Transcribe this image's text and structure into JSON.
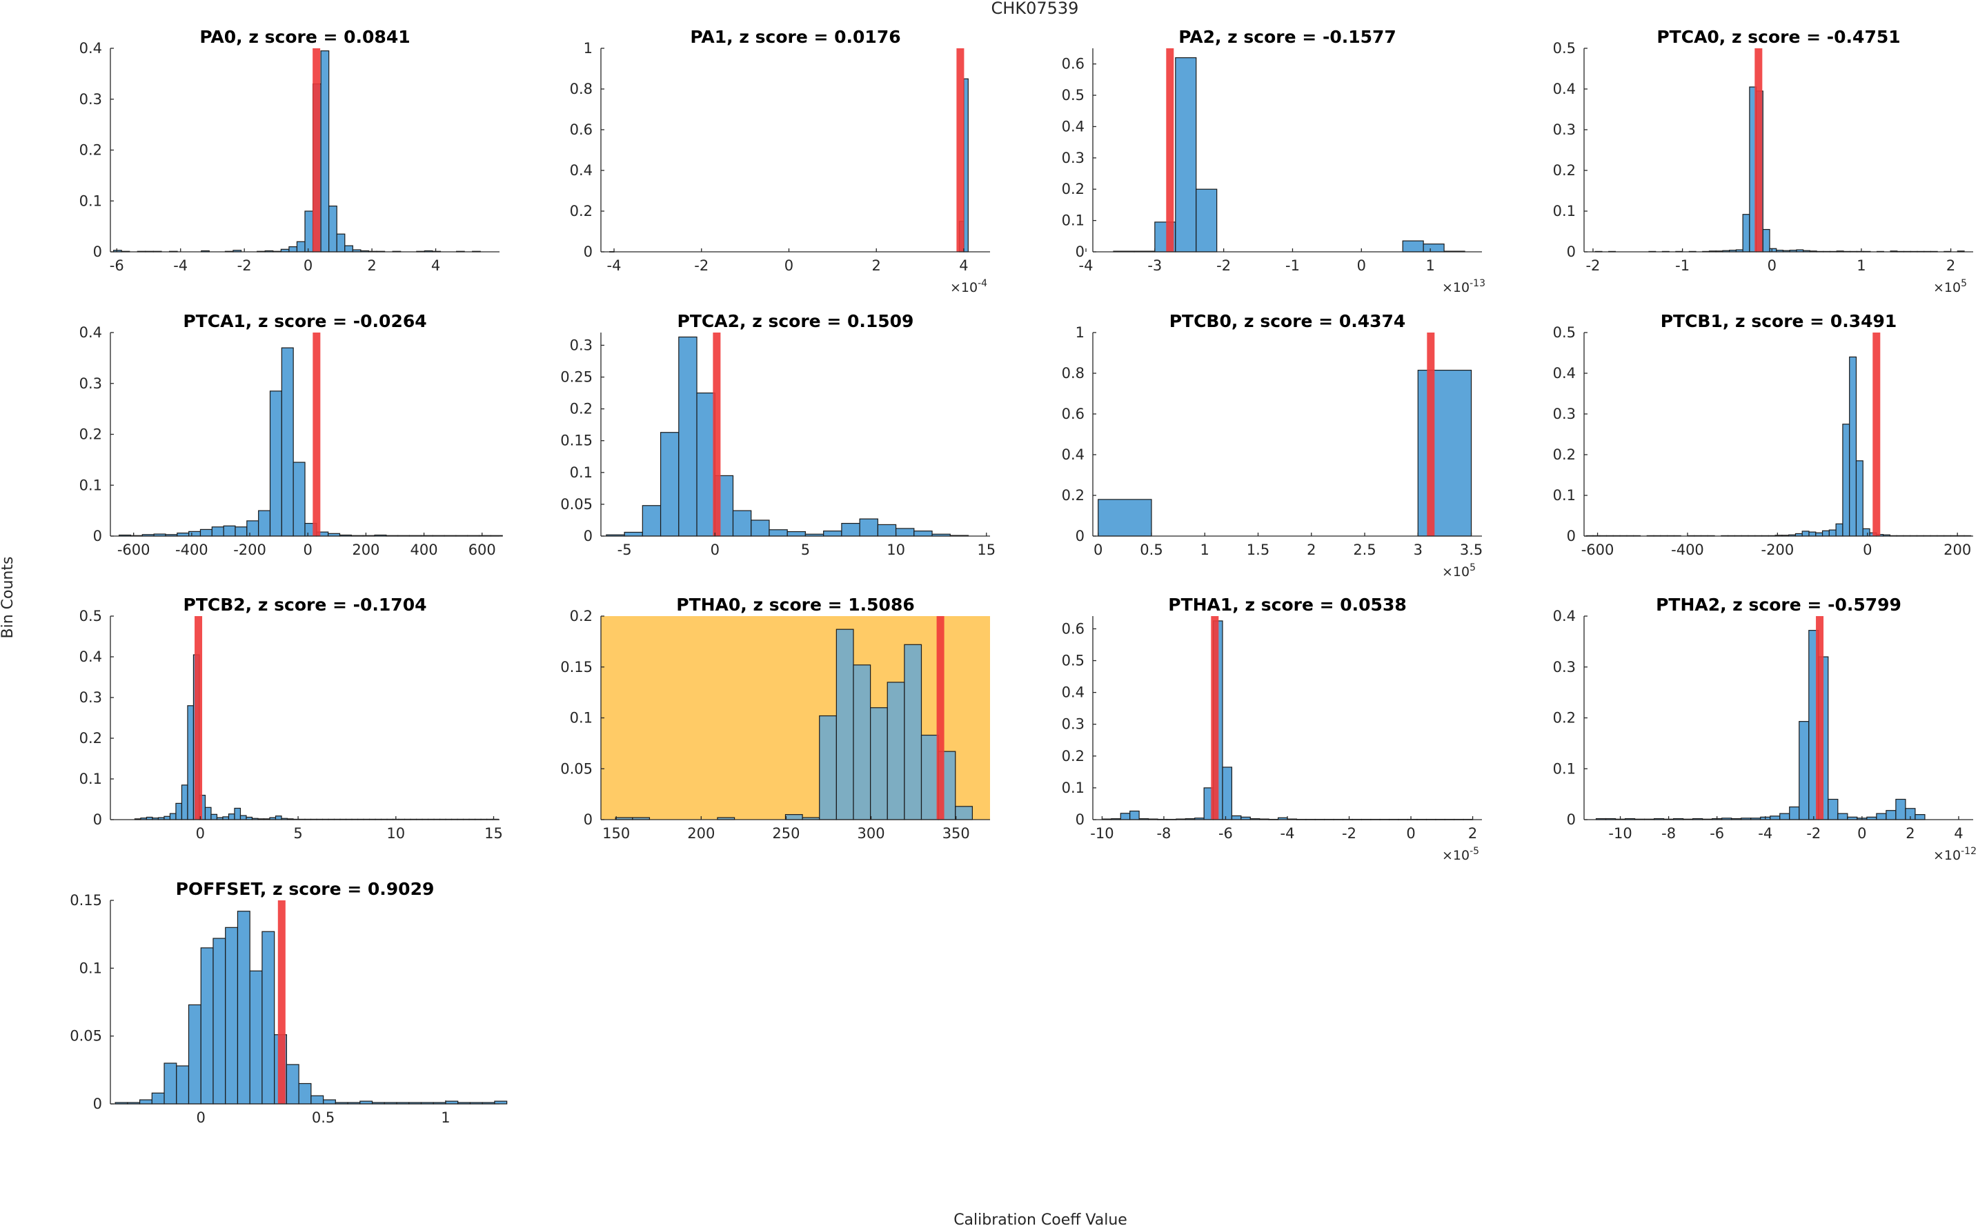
{
  "figure": {
    "title": "CHK07539",
    "xlabel": "Calibration Coeff Value",
    "ylabel": "Bin Counts"
  },
  "colors": {
    "bar_fill": "#5DA5D9",
    "marker": "#F03A3A",
    "highlight_bg": "#FFCB66",
    "axis": "#262626"
  },
  "chart_data": [
    {
      "type": "bar",
      "title": "PA0, z score = 0.0841",
      "xlabel": "",
      "ylabel": "",
      "xlim": [
        -6.2,
        6.0
      ],
      "ylim": [
        0,
        0.4
      ],
      "exponent": null,
      "xticks": [
        -6,
        -4,
        -2,
        0,
        2,
        4
      ],
      "xtick_labels": [
        "-6",
        "-4",
        "-2",
        "0",
        "2",
        "4"
      ],
      "yticks": [
        0,
        0.1,
        0.2,
        0.3,
        0.4
      ],
      "ytick_labels": [
        "0",
        "0.1",
        "0.2",
        "0.3",
        "0.4"
      ],
      "bin_start": -6.1,
      "bin_width": 0.25,
      "values": [
        0.003,
        0.001,
        0,
        0.001,
        0.001,
        0.001,
        0,
        0.001,
        0,
        0,
        0,
        0.002,
        0,
        0,
        0.001,
        0.003,
        0,
        0,
        0.001,
        0.002,
        0.001,
        0.005,
        0.01,
        0.02,
        0.08,
        0.33,
        0.395,
        0.09,
        0.035,
        0.012,
        0.004,
        0.002,
        0.001,
        0.001,
        0,
        0.001,
        0,
        0,
        0.001,
        0.002,
        0.001,
        0,
        0,
        0.001,
        0,
        0.001
      ],
      "marker": 0.26,
      "highlight": false
    },
    {
      "type": "bar",
      "title": "PA1, z score = 0.0176",
      "xlabel": "",
      "ylabel": "",
      "xlim": [
        -4.3,
        4.6
      ],
      "ylim": [
        0,
        1.0
      ],
      "exponent": "-4",
      "xticks": [
        -4,
        -2,
        0,
        2,
        4
      ],
      "xtick_labels": [
        "-4",
        "-2",
        "0",
        "2",
        "4"
      ],
      "yticks": [
        0,
        0.2,
        0.4,
        0.6,
        0.8,
        1.0
      ],
      "ytick_labels": [
        "0",
        "0.2",
        "0.4",
        "0.6",
        "0.8",
        "1"
      ],
      "bin_start": -4.1,
      "bin_width": 0.1,
      "values": [
        0.001,
        0,
        0,
        0,
        0,
        0,
        0,
        0,
        0,
        0,
        0,
        0,
        0,
        0,
        0,
        0,
        0,
        0,
        0,
        0,
        0,
        0,
        0,
        0,
        0,
        0,
        0,
        0,
        0,
        0,
        0,
        0,
        0,
        0,
        0,
        0,
        0,
        0,
        0,
        0,
        0,
        0,
        0,
        0,
        0,
        0,
        0,
        0,
        0,
        0,
        0,
        0,
        0,
        0,
        0,
        0,
        0,
        0,
        0,
        0,
        0,
        0,
        0,
        0,
        0,
        0,
        0,
        0,
        0,
        0,
        0,
        0,
        0,
        0,
        0,
        0,
        0,
        0,
        0,
        0,
        0.15,
        0.85
      ],
      "marker": 3.92,
      "highlight": false
    },
    {
      "type": "bar",
      "title": "PA2, z score = -0.1577",
      "xlabel": "",
      "ylabel": "",
      "xlim": [
        -3.9,
        1.75
      ],
      "ylim": [
        0,
        0.65
      ],
      "exponent": "-13",
      "xticks": [
        -4,
        -3,
        -2,
        -1,
        0,
        1
      ],
      "xtick_labels": [
        "-4",
        "-3",
        "-2",
        "-1",
        "0",
        "1"
      ],
      "yticks": [
        0,
        0.1,
        0.2,
        0.3,
        0.4,
        0.5,
        0.6
      ],
      "ytick_labels": [
        "0",
        "0.1",
        "0.2",
        "0.3",
        "0.4",
        "0.5",
        "0.6"
      ],
      "bin_start": -3.6,
      "bin_width": 0.3,
      "values": [
        0.002,
        0.002,
        0.095,
        0.62,
        0.2,
        0,
        0,
        0,
        0,
        0,
        0,
        0,
        0,
        0,
        0.035,
        0.025,
        0.002
      ],
      "marker": -2.78,
      "highlight": false
    },
    {
      "type": "bar",
      "title": "PTCA0, z score = -0.4751",
      "xlabel": "",
      "ylabel": "",
      "xlim": [
        -2.1,
        2.25
      ],
      "ylim": [
        0,
        0.5
      ],
      "exponent": "5",
      "xticks": [
        -2,
        -1,
        0,
        1,
        2
      ],
      "xtick_labels": [
        "-2",
        "-1",
        "0",
        "1",
        "2"
      ],
      "yticks": [
        0,
        0.1,
        0.2,
        0.3,
        0.4,
        0.5
      ],
      "ytick_labels": [
        "0",
        "0.1",
        "0.2",
        "0.3",
        "0.4",
        "0.5"
      ],
      "bin_start": -1.975,
      "bin_width": 0.075,
      "values": [
        0.001,
        0,
        0.001,
        0,
        0,
        0,
        0,
        0,
        0.001,
        0,
        0.001,
        0,
        0.001,
        0,
        0.001,
        0,
        0.001,
        0.002,
        0.002,
        0.003,
        0.004,
        0.005,
        0.092,
        0.405,
        0.395,
        0.055,
        0.008,
        0.004,
        0.003,
        0.004,
        0.005,
        0.003,
        0.002,
        0.001,
        0.001,
        0.001,
        0.002,
        0.001,
        0.001,
        0.001,
        0.001,
        0,
        0.001,
        0,
        0.002,
        0.001,
        0.001,
        0.001,
        0.001,
        0.001,
        0.001,
        0,
        0.001,
        0,
        0.002
      ],
      "marker": -0.15,
      "highlight": false
    },
    {
      "type": "bar",
      "title": "PTCA1, z score = -0.0264",
      "xlabel": "",
      "ylabel": "",
      "xlim": [
        -680,
        660
      ],
      "ylim": [
        0,
        0.4
      ],
      "exponent": null,
      "xticks": [
        -600,
        -400,
        -200,
        0,
        200,
        400,
        600
      ],
      "xtick_labels": [
        "-600",
        "-400",
        "-200",
        "0",
        "200",
        "400",
        "600"
      ],
      "yticks": [
        0,
        0.1,
        0.2,
        0.3,
        0.4
      ],
      "ytick_labels": [
        "0",
        "0.1",
        "0.2",
        "0.3",
        "0.4"
      ],
      "bin_start": -650,
      "bin_width": 40,
      "values": [
        0.002,
        0.001,
        0.003,
        0.004,
        0.003,
        0.006,
        0.009,
        0.013,
        0.018,
        0.02,
        0.018,
        0.03,
        0.05,
        0.285,
        0.37,
        0.145,
        0.025,
        0.008,
        0.005,
        0.002,
        0.001,
        0.001,
        0.002,
        0.001,
        0.001,
        0.001,
        0.001,
        0.001,
        0.001,
        0.001,
        0.001,
        0.001,
        0.001
      ],
      "marker": 30,
      "highlight": false
    },
    {
      "type": "bar",
      "title": "PTCA2, z score = 0.1509",
      "xlabel": "",
      "ylabel": "",
      "xlim": [
        -6.3,
        15.2
      ],
      "ylim": [
        0,
        0.32
      ],
      "exponent": null,
      "xticks": [
        -5,
        0,
        5,
        10,
        15
      ],
      "xtick_labels": [
        "-5",
        "0",
        "5",
        "10",
        "15"
      ],
      "yticks": [
        0,
        0.05,
        0.1,
        0.15,
        0.2,
        0.25,
        0.3
      ],
      "ytick_labels": [
        "0",
        "0.05",
        "0.1",
        "0.15",
        "0.2",
        "0.25",
        "0.3"
      ],
      "bin_start": -6,
      "bin_width": 1,
      "values": [
        0.002,
        0.006,
        0.048,
        0.163,
        0.313,
        0.225,
        0.095,
        0.04,
        0.025,
        0.01,
        0.007,
        0.003,
        0.008,
        0.02,
        0.027,
        0.018,
        0.012,
        0.008,
        0.003,
        0.001
      ],
      "marker": 0.1,
      "highlight": false
    },
    {
      "type": "bar",
      "title": "PTCB0, z score = 0.4374",
      "xlabel": "",
      "ylabel": "",
      "xlim": [
        -0.05,
        3.6
      ],
      "ylim": [
        0,
        1.0
      ],
      "exponent": "5",
      "xticks": [
        0,
        0.5,
        1,
        1.5,
        2,
        2.5,
        3,
        3.5
      ],
      "xtick_labels": [
        "0",
        "0.5",
        "1",
        "1.5",
        "2",
        "2.5",
        "3",
        "3.5"
      ],
      "yticks": [
        0,
        0.2,
        0.4,
        0.6,
        0.8,
        1.0
      ],
      "ytick_labels": [
        "0",
        "0.2",
        "0.4",
        "0.6",
        "0.8",
        "1"
      ],
      "bin_start": 0,
      "bin_width": 0.5,
      "values": [
        0.18,
        0,
        0,
        0,
        0,
        0,
        0.815
      ],
      "marker": 3.12,
      "highlight": false
    },
    {
      "type": "bar",
      "title": "PTCB1, z score = 0.3491",
      "xlabel": "",
      "ylabel": "",
      "xlim": [
        -630,
        235
      ],
      "ylim": [
        0,
        0.5
      ],
      "exponent": null,
      "xticks": [
        -600,
        -400,
        -200,
        0,
        200
      ],
      "xtick_labels": [
        "-600",
        "-400",
        "-200",
        "0",
        "200"
      ],
      "yticks": [
        0,
        0.1,
        0.2,
        0.3,
        0.4,
        0.5
      ],
      "ytick_labels": [
        "0",
        "0.1",
        "0.2",
        "0.3",
        "0.4",
        "0.5"
      ],
      "bin_start": -625,
      "bin_width": 15,
      "values": [
        0.001,
        0.001,
        0.001,
        0.001,
        0.001,
        0.001,
        0.001,
        0.001,
        0,
        0.001,
        0.001,
        0.001,
        0.001,
        0.001,
        0,
        0.001,
        0.001,
        0.001,
        0.001,
        0,
        0.001,
        0.001,
        0.001,
        0.001,
        0.001,
        0.001,
        0.001,
        0.001,
        0.002,
        0.002,
        0.003,
        0.006,
        0.012,
        0.01,
        0.008,
        0.013,
        0.015,
        0.03,
        0.275,
        0.44,
        0.185,
        0.018,
        0.008,
        0.004,
        0.003,
        0.001,
        0.001,
        0.001,
        0.001,
        0.001,
        0.001,
        0.001,
        0.001,
        0.001,
        0.001,
        0.001,
        0.001
      ],
      "marker": 20,
      "highlight": false
    },
    {
      "type": "bar",
      "title": "PTCB2, z score = -0.1704",
      "xlabel": "",
      "ylabel": "",
      "xlim": [
        -4.6,
        15.3
      ],
      "ylim": [
        0,
        0.5
      ],
      "exponent": null,
      "xticks": [
        0,
        5,
        10,
        15
      ],
      "xtick_labels": [
        "0",
        "5",
        "10",
        "15"
      ],
      "yticks": [
        0,
        0.1,
        0.2,
        0.3,
        0.4,
        0.5
      ],
      "ytick_labels": [
        "0",
        "0.1",
        "0.2",
        "0.3",
        "0.4",
        "0.5"
      ],
      "bin_start": -3.35,
      "bin_width": 0.3,
      "values": [
        0.002,
        0.004,
        0.006,
        0.004,
        0.005,
        0.008,
        0.015,
        0.04,
        0.085,
        0.28,
        0.405,
        0.06,
        0.03,
        0.013,
        0.005,
        0.007,
        0.014,
        0.028,
        0.01,
        0.006,
        0.003,
        0.002,
        0.002,
        0.005,
        0.009,
        0.003,
        0.002,
        0.001,
        0.001,
        0.001,
        0.001,
        0.001,
        0.001,
        0.001,
        0.001,
        0.001,
        0.001,
        0.001,
        0.001,
        0.001,
        0.001,
        0.001,
        0.001,
        0.001,
        0.001,
        0.001,
        0.001,
        0.001,
        0.001,
        0.001,
        0.001,
        0.001,
        0.001,
        0.001,
        0.001,
        0.001,
        0.001,
        0.001,
        0.001,
        0.001,
        0.001,
        0.001
      ],
      "marker": -0.1,
      "highlight": false
    },
    {
      "type": "bar",
      "title": "PTHA0, z score = 1.5086",
      "xlabel": "",
      "ylabel": "",
      "xlim": [
        141,
        370
      ],
      "ylim": [
        0,
        0.2
      ],
      "exponent": null,
      "xticks": [
        150,
        200,
        250,
        300,
        350
      ],
      "xtick_labels": [
        "150",
        "200",
        "250",
        "300",
        "350"
      ],
      "yticks": [
        0,
        0.05,
        0.1,
        0.15,
        0.2
      ],
      "ytick_labels": [
        "0",
        "0.05",
        "0.1",
        "0.15",
        "0.2"
      ],
      "bin_start": 149.6,
      "bin_width": 10,
      "values": [
        0.002,
        0.002,
        0,
        0,
        0,
        0,
        0.002,
        0,
        0,
        0,
        0.005,
        0.002,
        0.102,
        0.187,
        0.152,
        0.11,
        0.135,
        0.172,
        0.083,
        0.067,
        0.013
      ],
      "marker": 340.8,
      "highlight": true
    },
    {
      "type": "bar",
      "title": "PTHA1, z score = 0.0538",
      "xlabel": "",
      "ylabel": "",
      "xlim": [
        -10.3,
        2.3
      ],
      "ylim": [
        0,
        0.64
      ],
      "exponent": "-5",
      "xticks": [
        -10,
        -8,
        -6,
        -4,
        -2,
        0,
        2
      ],
      "xtick_labels": [
        "-10",
        "-8",
        "-6",
        "-4",
        "-2",
        "0",
        "2"
      ],
      "yticks": [
        0,
        0.1,
        0.2,
        0.3,
        0.4,
        0.5,
        0.6
      ],
      "ytick_labels": [
        "0",
        "0.1",
        "0.2",
        "0.3",
        "0.4",
        "0.5",
        "0.6"
      ],
      "bin_start": -10,
      "bin_width": 0.3,
      "values": [
        0.002,
        0.003,
        0.02,
        0.027,
        0.003,
        0.002,
        0.001,
        0.001,
        0.002,
        0.003,
        0.005,
        0.1,
        0.625,
        0.165,
        0.012,
        0.008,
        0.003,
        0.002,
        0.001,
        0.006,
        0.002,
        0.001,
        0.001,
        0.001,
        0.001,
        0.001,
        0.001,
        0.001,
        0.001,
        0.001,
        0.001,
        0.001,
        0.001,
        0.001,
        0.001,
        0.001,
        0.001,
        0.001,
        0.001,
        0.001
      ],
      "marker": -6.35,
      "highlight": false
    },
    {
      "type": "bar",
      "title": "PTHA2, z score = -0.5799",
      "xlabel": "",
      "ylabel": "",
      "xlim": [
        -11.5,
        4.6
      ],
      "ylim": [
        0,
        0.4
      ],
      "exponent": "-12",
      "xticks": [
        -10,
        -8,
        -6,
        -4,
        -2,
        0,
        2,
        4
      ],
      "xtick_labels": [
        "-10",
        "-8",
        "-6",
        "-4",
        "-2",
        "0",
        "2",
        "4"
      ],
      "yticks": [
        0,
        0.1,
        0.2,
        0.3,
        0.4
      ],
      "ytick_labels": [
        "0",
        "0.1",
        "0.2",
        "0.3",
        "0.4"
      ],
      "bin_start": -11,
      "bin_width": 0.4,
      "values": [
        0.002,
        0.002,
        0.001,
        0.002,
        0.001,
        0.001,
        0.002,
        0.001,
        0.002,
        0.001,
        0.002,
        0.001,
        0.002,
        0.003,
        0.002,
        0.003,
        0.003,
        0.005,
        0.007,
        0.012,
        0.025,
        0.193,
        0.372,
        0.32,
        0.04,
        0.012,
        0.005,
        0.003,
        0.005,
        0.012,
        0.018,
        0.04,
        0.022,
        0.01
      ],
      "marker": -1.75,
      "highlight": false
    },
    {
      "type": "bar",
      "title": "POFFSET, z score = 0.9029",
      "xlabel": "",
      "ylabel": "",
      "xlim": [
        -0.37,
        1.22
      ],
      "ylim": [
        0,
        0.15
      ],
      "exponent": null,
      "xticks": [
        0,
        0.5,
        1
      ],
      "xtick_labels": [
        "0",
        "0.5",
        "1"
      ],
      "yticks": [
        0,
        0.05,
        0.1,
        0.15
      ],
      "ytick_labels": [
        "0",
        "0.05",
        "0.1",
        "0.15"
      ],
      "bin_start": -0.35,
      "bin_width": 0.05,
      "values": [
        0.001,
        0.001,
        0.003,
        0.008,
        0.03,
        0.028,
        0.073,
        0.115,
        0.122,
        0.13,
        0.142,
        0.098,
        0.127,
        0.051,
        0.029,
        0.015,
        0.006,
        0.003,
        0.001,
        0.001,
        0.002,
        0.001,
        0.001,
        0.001,
        0.001,
        0.001,
        0.001,
        0.002,
        0.001,
        0.001,
        0.001,
        0.002
      ],
      "marker": 0.33,
      "highlight": false
    }
  ]
}
